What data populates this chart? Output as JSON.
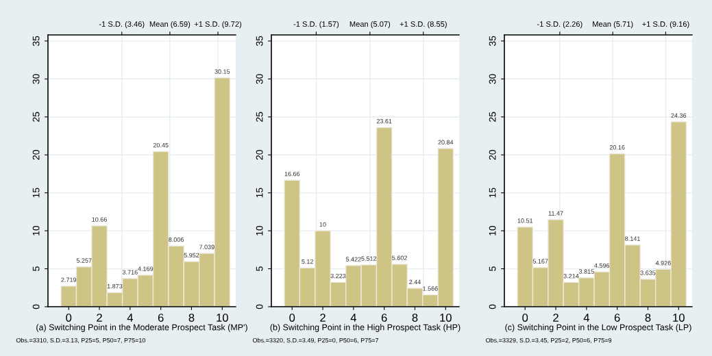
{
  "chart_data": [
    {
      "type": "histogram",
      "bins": [
        -0.5,
        0.5,
        1.5,
        2.5,
        3.5,
        4.5,
        5.5,
        6.5,
        7.5,
        8.5,
        9.5,
        10.5
      ],
      "values": [
        2.719,
        5.257,
        10.66,
        1.873,
        3.716,
        4.169,
        20.45,
        8.006,
        5.952,
        7.039,
        30.15
      ],
      "color": "#cdc486",
      "data_labels": true,
      "xlabel": "(a) Switching Point in the Moderate Prospect Task (MP')",
      "annotations": [
        "Obs.=3310, S.D.=3.13, P25=5, P50=7, P75=10"
      ],
      "xlim": [
        -1.35,
        10.88
      ],
      "xticks": [
        0,
        2,
        4,
        6,
        8,
        10
      ],
      "ylim": [
        0,
        35.8
      ],
      "yticks": [
        0,
        5,
        10,
        15,
        20,
        25,
        30,
        35
      ],
      "grid": "y",
      "ref_lines": [
        {
          "axis": "x",
          "value": 3.46,
          "label": "-1 S.D. (3.46)",
          "color": "#e6eef1"
        },
        {
          "axis": "x",
          "value": 6.59,
          "label": "Mean (6.59)",
          "color": "#e6eef1"
        },
        {
          "axis": "x",
          "value": 9.72,
          "label": "+1 S.D. (9.72)",
          "color": "#e6eef1"
        }
      ]
    },
    {
      "type": "histogram",
      "bins": [
        -0.5,
        0.5,
        1.5,
        2.5,
        3.5,
        4.5,
        5.5,
        6.5,
        7.5,
        8.5,
        9.5,
        10.5
      ],
      "values": [
        16.66,
        5.12,
        10,
        3.223,
        5.422,
        5.512,
        23.61,
        5.602,
        2.44,
        1.566,
        20.84
      ],
      "color": "#cdc486",
      "data_labels": true,
      "xlabel": "(b) Switching Point in the High Prospect Task (HP)",
      "annotations": [
        "Obs.=3320, S.D.=3.49, P25=0, P50=6, P75=7"
      ],
      "xlim": [
        -1.35,
        10.88
      ],
      "xticks": [
        0,
        2,
        4,
        6,
        8,
        10
      ],
      "ylim": [
        0,
        35.8
      ],
      "yticks": [
        0,
        5,
        10,
        15,
        20,
        25,
        30,
        35
      ],
      "grid": "y",
      "ref_lines": [
        {
          "axis": "x",
          "value": 1.57,
          "label": "-1 S.D. (1.57)",
          "color": "#e6eef1"
        },
        {
          "axis": "x",
          "value": 5.07,
          "label": "Mean (5.07)",
          "color": "#e6eef1"
        },
        {
          "axis": "x",
          "value": 8.55,
          "label": "+1 S.D. (8.55)",
          "color": "#e6eef1"
        }
      ]
    },
    {
      "type": "histogram",
      "bins": [
        -0.5,
        0.5,
        1.5,
        2.5,
        3.5,
        4.5,
        5.5,
        6.5,
        7.5,
        8.5,
        9.5,
        10.5
      ],
      "values": [
        10.51,
        5.167,
        11.47,
        3.214,
        3.815,
        4.596,
        20.16,
        8.141,
        3.635,
        4.926,
        24.36
      ],
      "color": "#cdc486",
      "data_labels": true,
      "xlabel": "(c) Switching Point in the Low Prospect Task (LP)",
      "annotations": [
        "Obs.=3329, S.D.=3.45, P25=2, P50=6, P75=9"
      ],
      "xlim": [
        -1.35,
        10.88
      ],
      "xticks": [
        0,
        2,
        4,
        6,
        8,
        10
      ],
      "ylim": [
        0,
        35.8
      ],
      "yticks": [
        0,
        5,
        10,
        15,
        20,
        25,
        30,
        35
      ],
      "grid": "y",
      "ref_lines": [
        {
          "axis": "x",
          "value": 2.26,
          "label": "-1 S.D. (2.26)",
          "color": "#e6eef1"
        },
        {
          "axis": "x",
          "value": 5.71,
          "label": "Mean (5.71)",
          "color": "#e6eef1"
        },
        {
          "axis": "x",
          "value": 9.16,
          "label": "+1 S.D. (9.16)",
          "color": "#e6eef1"
        }
      ]
    }
  ]
}
